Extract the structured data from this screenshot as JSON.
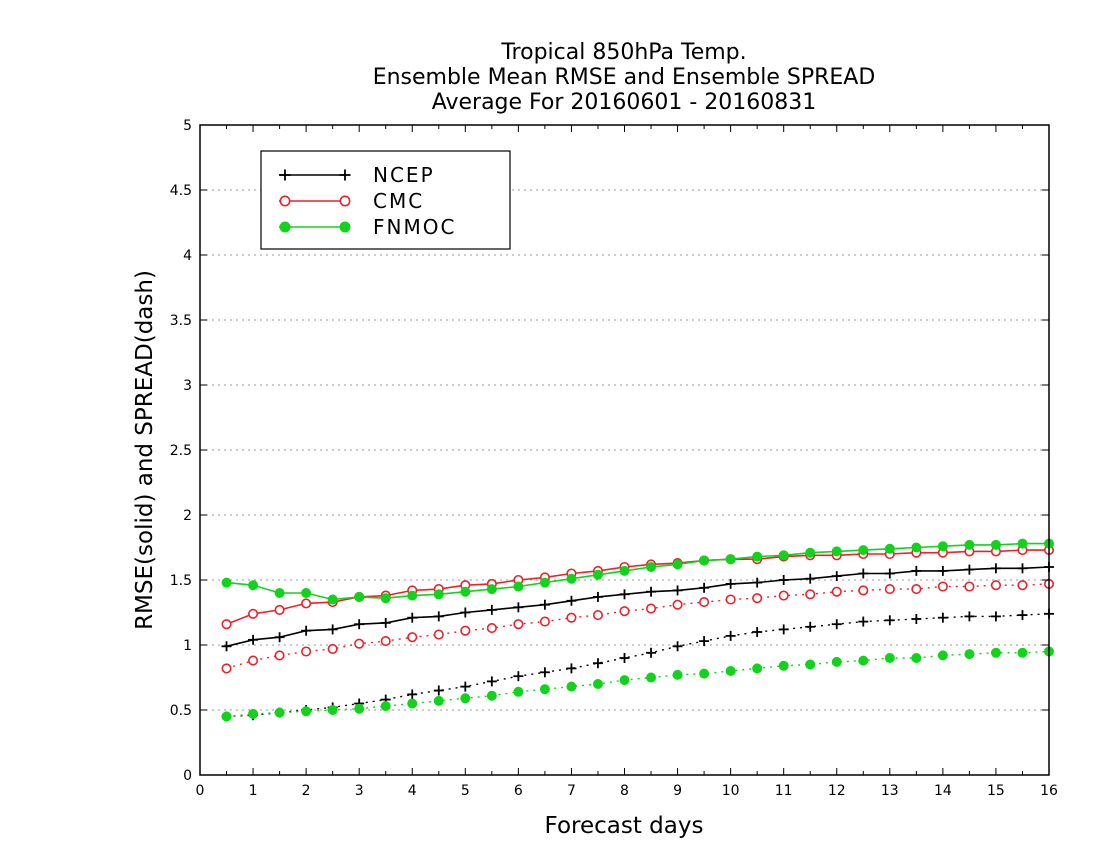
{
  "chart_data": {
    "type": "line",
    "title": [
      "Tropical 850hPa Temp.",
      "Ensemble Mean RMSE and Ensemble SPREAD",
      "Average For 20160601 - 20160831"
    ],
    "xlabel": "Forecast days",
    "ylabel": "RMSE(solid) and SPREAD(dash)",
    "xlim": [
      0,
      16
    ],
    "ylim": [
      0,
      5
    ],
    "xticks": [
      "0",
      "1",
      "2",
      "3",
      "4",
      "5",
      "6",
      "7",
      "8",
      "9",
      "10",
      "11",
      "12",
      "13",
      "14",
      "15",
      "16"
    ],
    "yticks": [
      "0",
      "0.5",
      "1",
      "1.5",
      "2",
      "2.5",
      "3",
      "3.5",
      "4",
      "4.5",
      "5"
    ],
    "grid": "horizontal-dotted",
    "legend_position": "top-left",
    "x": [
      0.5,
      1,
      1.5,
      2,
      2.5,
      3,
      3.5,
      4,
      4.5,
      5,
      5.5,
      6,
      6.5,
      7,
      7.5,
      8,
      8.5,
      9,
      9.5,
      10,
      10.5,
      11,
      11.5,
      12,
      12.5,
      13,
      13.5,
      14,
      14.5,
      15,
      15.5,
      16
    ],
    "series": [
      {
        "name": "NCEP",
        "color": "#000000",
        "marker": "plus",
        "rmse": [
          0.99,
          1.04,
          1.06,
          1.11,
          1.12,
          1.16,
          1.17,
          1.21,
          1.22,
          1.25,
          1.27,
          1.29,
          1.31,
          1.34,
          1.37,
          1.39,
          1.41,
          1.42,
          1.44,
          1.47,
          1.48,
          1.5,
          1.51,
          1.53,
          1.55,
          1.55,
          1.57,
          1.57,
          1.58,
          1.59,
          1.59,
          1.6
        ],
        "spread": [
          0.45,
          0.46,
          0.48,
          0.5,
          0.52,
          0.55,
          0.58,
          0.62,
          0.65,
          0.68,
          0.72,
          0.76,
          0.79,
          0.82,
          0.86,
          0.9,
          0.94,
          0.99,
          1.03,
          1.07,
          1.1,
          1.12,
          1.14,
          1.16,
          1.18,
          1.19,
          1.2,
          1.21,
          1.22,
          1.22,
          1.23,
          1.24
        ]
      },
      {
        "name": "CMC",
        "color": "#e8232b",
        "marker": "open-circle",
        "rmse": [
          1.16,
          1.24,
          1.27,
          1.32,
          1.33,
          1.37,
          1.38,
          1.42,
          1.43,
          1.46,
          1.47,
          1.5,
          1.52,
          1.55,
          1.57,
          1.6,
          1.62,
          1.63,
          1.65,
          1.66,
          1.66,
          1.68,
          1.69,
          1.69,
          1.7,
          1.7,
          1.71,
          1.71,
          1.72,
          1.72,
          1.73,
          1.73
        ],
        "spread": [
          0.82,
          0.88,
          0.92,
          0.95,
          0.97,
          1.01,
          1.03,
          1.06,
          1.08,
          1.11,
          1.13,
          1.16,
          1.18,
          1.21,
          1.23,
          1.26,
          1.28,
          1.31,
          1.33,
          1.35,
          1.36,
          1.38,
          1.39,
          1.41,
          1.42,
          1.43,
          1.43,
          1.45,
          1.45,
          1.46,
          1.46,
          1.47
        ]
      },
      {
        "name": "FNMOC",
        "color": "#12d31c",
        "marker": "filled-circle",
        "rmse": [
          1.48,
          1.46,
          1.4,
          1.4,
          1.35,
          1.37,
          1.36,
          1.38,
          1.39,
          1.41,
          1.43,
          1.45,
          1.48,
          1.51,
          1.54,
          1.57,
          1.6,
          1.62,
          1.65,
          1.66,
          1.68,
          1.69,
          1.71,
          1.72,
          1.73,
          1.74,
          1.75,
          1.76,
          1.77,
          1.77,
          1.78,
          1.78
        ],
        "spread": [
          0.45,
          0.47,
          0.48,
          0.49,
          0.5,
          0.51,
          0.53,
          0.55,
          0.57,
          0.59,
          0.61,
          0.64,
          0.66,
          0.68,
          0.7,
          0.73,
          0.75,
          0.77,
          0.78,
          0.8,
          0.82,
          0.84,
          0.85,
          0.87,
          0.88,
          0.9,
          0.9,
          0.92,
          0.93,
          0.94,
          0.94,
          0.95
        ]
      }
    ]
  }
}
